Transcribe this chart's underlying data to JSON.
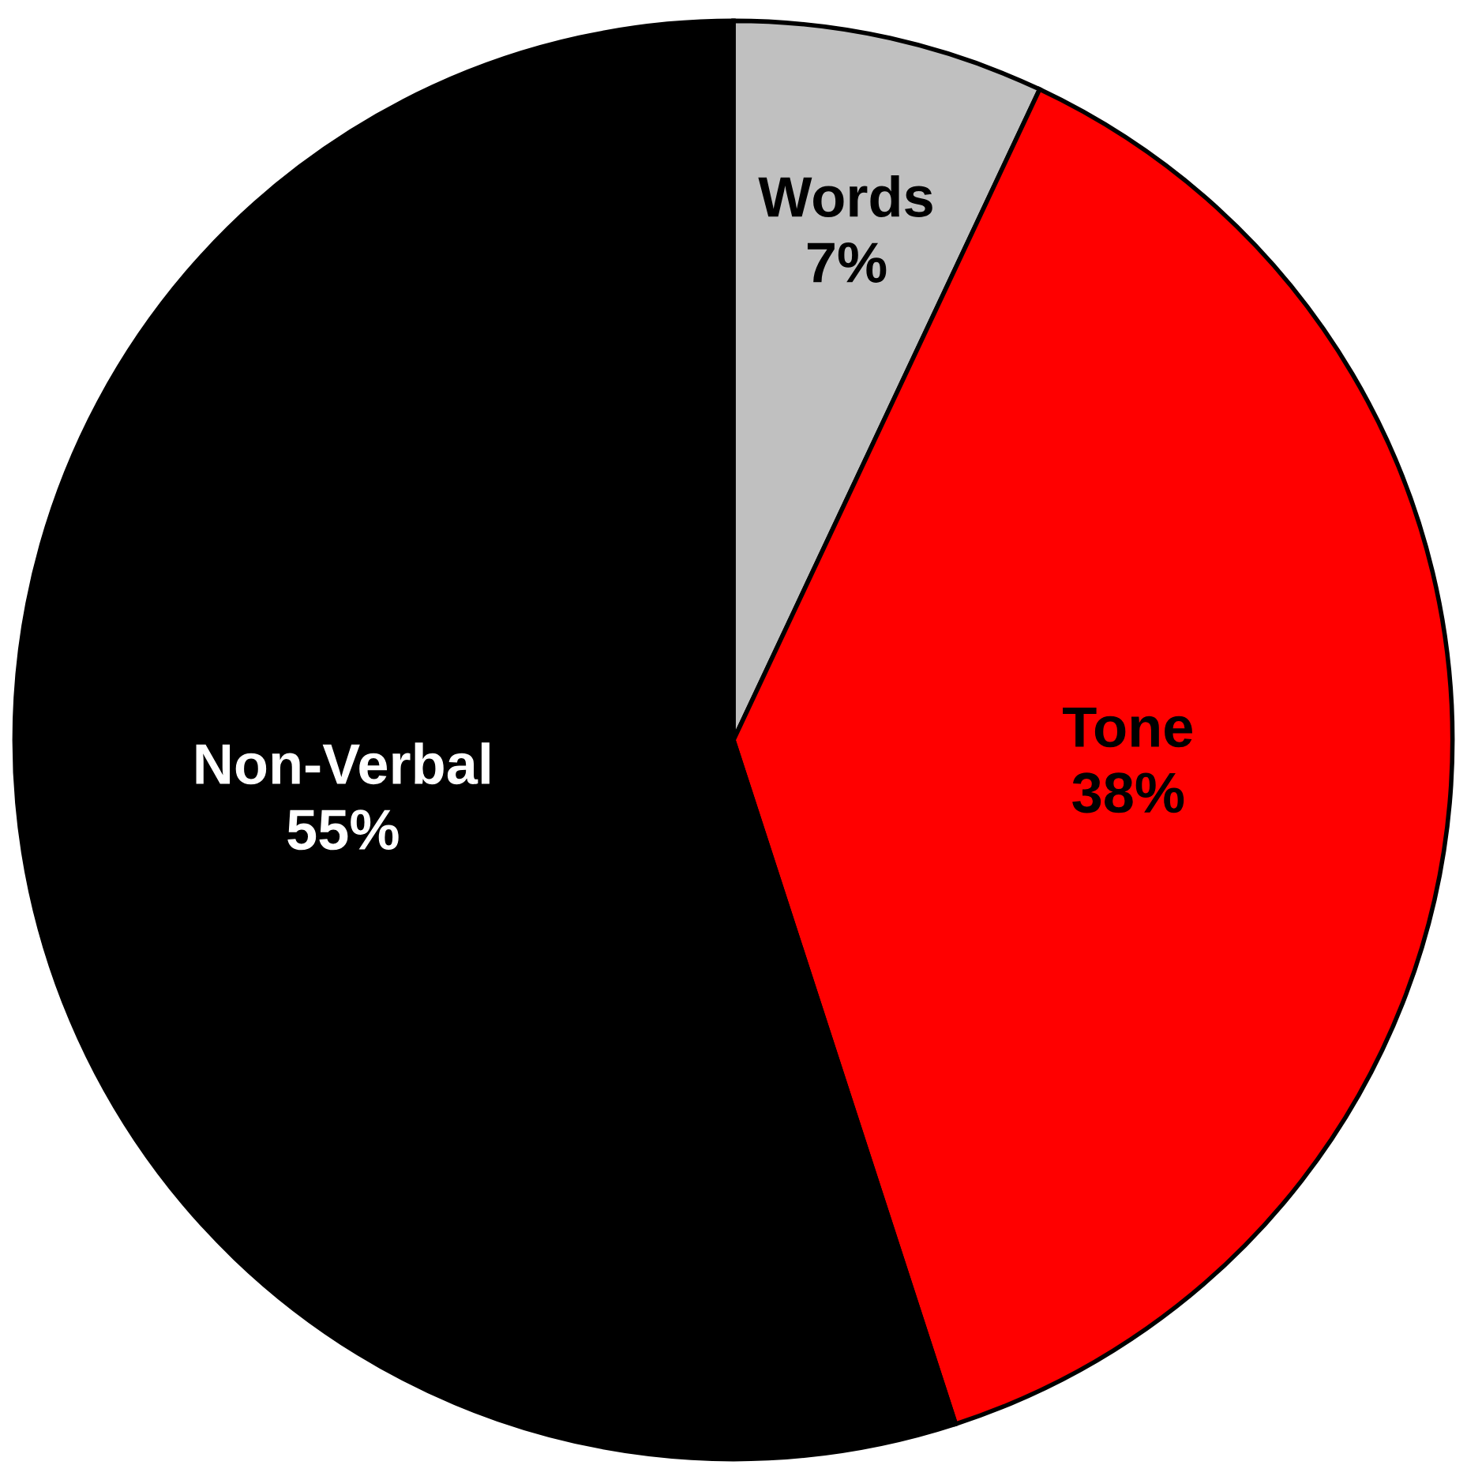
{
  "chart_data": {
    "type": "pie",
    "categories": [
      "Words",
      "Tone",
      "Non-Verbal"
    ],
    "values": [
      7,
      38,
      55
    ],
    "colors": [
      "#c0c0c0",
      "#ff0000",
      "#000000"
    ],
    "value_labels": [
      "7%",
      "38%",
      "55%"
    ]
  }
}
